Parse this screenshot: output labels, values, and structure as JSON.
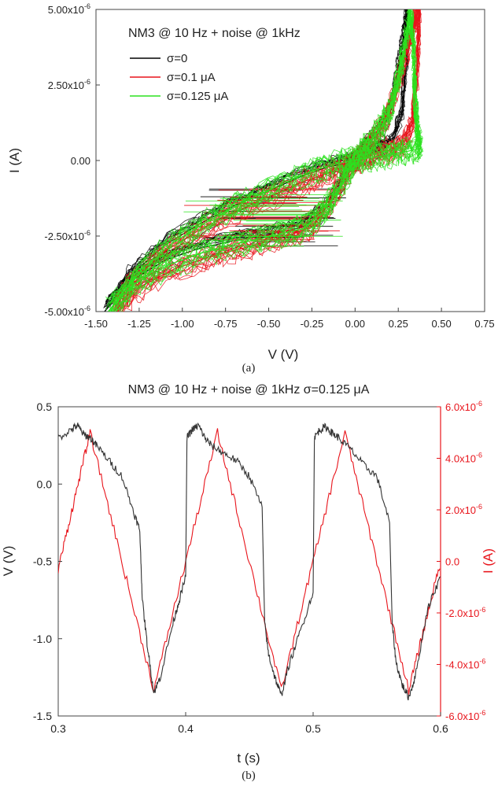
{
  "figure": {
    "panel_a_caption": "(a)",
    "panel_b_caption": "(b)"
  },
  "chart_data": [
    {
      "type": "line",
      "title": "NM3 @ 10 Hz + noise @ 1kHz",
      "xlabel": "V (V)",
      "ylabel": "I (A)",
      "xlim": [
        -1.5,
        0.75
      ],
      "ylim": [
        -5e-06,
        5e-06
      ],
      "x_ticks": [
        "-1.50",
        "-1.25",
        "-1.00",
        "-0.75",
        "-0.50",
        "-0.25",
        "0.00",
        "0.25",
        "0.50",
        "0.75"
      ],
      "y_ticks": [
        "-5.00x10-6",
        "-2.50x10-6",
        "0.00",
        "2.50x10-6",
        "5.00x10-6"
      ],
      "legend_position": "top-left",
      "series": [
        {
          "name": "σ=0",
          "color": "#000000",
          "x": [
            -1.45,
            -1.3,
            -1.1,
            -0.9,
            -0.7,
            -0.5,
            -0.3,
            -0.15,
            -0.05,
            0.0,
            0.05,
            0.12,
            0.18,
            0.22,
            0.25,
            0.28,
            0.3,
            0.3,
            0.27,
            0.22,
            0.15,
            0.1,
            0.05,
            0.0,
            -0.05,
            -0.15,
            -0.3,
            -0.5,
            -0.7,
            -0.9,
            -1.1,
            -1.3,
            -1.45
          ],
          "y": [
            -5e-06,
            -4e-06,
            -3.3e-06,
            -2.9e-06,
            -2.65e-06,
            -2.45e-06,
            -2.2e-06,
            -1.5e-06,
            -5e-07,
            0.0,
            4e-07,
            8e-07,
            1.3e-06,
            2e-06,
            3e-06,
            4e-06,
            5e-06,
            3.5e-06,
            1.5e-06,
            6e-07,
            3.5e-07,
            2.5e-07,
            1.5e-07,
            0.0,
            -1e-07,
            -2e-07,
            -5e-07,
            -1e-06,
            -1.5e-06,
            -2.1e-06,
            -2.8e-06,
            -3.8e-06,
            -5e-06
          ]
        },
        {
          "name": "σ=0.1 μA",
          "color": "#e8141b",
          "x": [
            -1.4,
            -1.25,
            -1.05,
            -0.85,
            -0.65,
            -0.45,
            -0.25,
            -0.1,
            0.0,
            0.08,
            0.16,
            0.22,
            0.27,
            0.32,
            0.35,
            0.37,
            0.36,
            0.33,
            0.28,
            0.2,
            0.1,
            0.03,
            -0.05,
            -0.15,
            -0.3,
            -0.5,
            -0.7,
            -0.9,
            -1.1,
            -1.3,
            -1.4
          ],
          "y": [
            -5e-06,
            -4.2e-06,
            -3.6e-06,
            -3.2e-06,
            -2.9e-06,
            -2.6e-06,
            -2.2e-06,
            -1e-06,
            0.0,
            6e-07,
            1.2e-06,
            2e-06,
            3e-06,
            4e-06,
            4.8e-06,
            5e-06,
            3e-06,
            1.2e-06,
            6e-07,
            3.5e-07,
            2e-07,
            8e-08,
            -1.5e-07,
            -4e-07,
            -7e-07,
            -1.2e-06,
            -1.7e-06,
            -2.3e-06,
            -3e-06,
            -4e-06,
            -5e-06
          ]
        },
        {
          "name": "σ=0.125 μA",
          "color": "#2be21f",
          "x": [
            -1.43,
            -1.28,
            -1.08,
            -0.88,
            -0.68,
            -0.48,
            -0.3,
            -0.18,
            -0.08,
            0.0,
            0.07,
            0.14,
            0.2,
            0.24,
            0.27,
            0.3,
            0.32,
            0.34,
            0.35,
            0.36,
            0.38,
            0.3,
            0.2,
            0.1,
            0.0,
            -0.1,
            -0.25,
            -0.45,
            -0.65,
            -0.85,
            -1.05,
            -1.25,
            -1.43
          ],
          "y": [
            -5e-06,
            -4.1e-06,
            -3.45e-06,
            -3.05e-06,
            -2.75e-06,
            -2.5e-06,
            -2.25e-06,
            -1.7e-06,
            -8e-07,
            0.0,
            5e-07,
            1e-06,
            1.6e-06,
            2.4e-06,
            3.3e-06,
            4.2e-06,
            5e-06,
            3.5e-06,
            1.8e-06,
            9e-07,
            4e-07,
            3e-07,
            2e-07,
            1e-07,
            2e-08,
            -1e-07,
            -3.5e-07,
            -8.5e-07,
            -1.4e-06,
            -2e-06,
            -2.7e-06,
            -3.7e-06,
            -5e-06
          ]
        }
      ]
    },
    {
      "type": "line",
      "title": "NM3 @ 10 Hz + noise @ 1kHz σ=0.125 μA",
      "xlabel": "t (s)",
      "ylabel": "V (V)",
      "ylabel_right": "I (A)",
      "xlim": [
        0.3,
        0.6
      ],
      "ylim": [
        -1.5,
        0.5
      ],
      "ylim_right": [
        -6e-06,
        6e-06
      ],
      "x_ticks": [
        "0.3",
        "0.4",
        "0.5",
        "0.6"
      ],
      "y_ticks": [
        "-1.5",
        "-1.0",
        "-0.5",
        "0.0",
        "0.5"
      ],
      "y_ticks_right": [
        "-6.0x10-6",
        "-4.0x10-6",
        "-2.0x10-6",
        "0.0",
        "2.0x10-6",
        "4.0x10-6",
        "6.0x10-6"
      ],
      "series": [
        {
          "axis": "left",
          "color": "#333333",
          "x": [
            0.3,
            0.31,
            0.315,
            0.32,
            0.325,
            0.33,
            0.34,
            0.35,
            0.36,
            0.364,
            0.366,
            0.37,
            0.375,
            0.38,
            0.39,
            0.395,
            0.4,
            0.401,
            0.405,
            0.41,
            0.415,
            0.42,
            0.43,
            0.44,
            0.45,
            0.46,
            0.462,
            0.465,
            0.47,
            0.475,
            0.48,
            0.49,
            0.5,
            0.501,
            0.505,
            0.51,
            0.515,
            0.52,
            0.53,
            0.54,
            0.55,
            0.56,
            0.562,
            0.565,
            0.57,
            0.575,
            0.58,
            0.59,
            0.6
          ],
          "y": [
            0.3,
            0.35,
            0.38,
            0.32,
            0.3,
            0.25,
            0.15,
            0.05,
            -0.2,
            -0.3,
            -0.75,
            -1.05,
            -1.35,
            -1.25,
            -0.9,
            -0.75,
            -0.6,
            0.3,
            0.35,
            0.38,
            0.3,
            0.25,
            0.2,
            0.15,
            0.05,
            -0.15,
            -0.9,
            -1.1,
            -1.25,
            -1.37,
            -1.2,
            -0.95,
            -0.7,
            0.3,
            0.35,
            0.37,
            0.33,
            0.3,
            0.22,
            0.12,
            0.05,
            -0.25,
            -0.9,
            -1.15,
            -1.3,
            -1.38,
            -1.25,
            -0.8,
            -0.6
          ]
        },
        {
          "axis": "right",
          "color": "#e8141b",
          "x": [
            0.3,
            0.325,
            0.375,
            0.425,
            0.475,
            0.525,
            0.575,
            0.6
          ],
          "y": [
            -3e-07,
            5e-06,
            -5e-06,
            5e-06,
            -5e-06,
            5e-06,
            -5e-06,
            0.0
          ]
        }
      ]
    }
  ]
}
